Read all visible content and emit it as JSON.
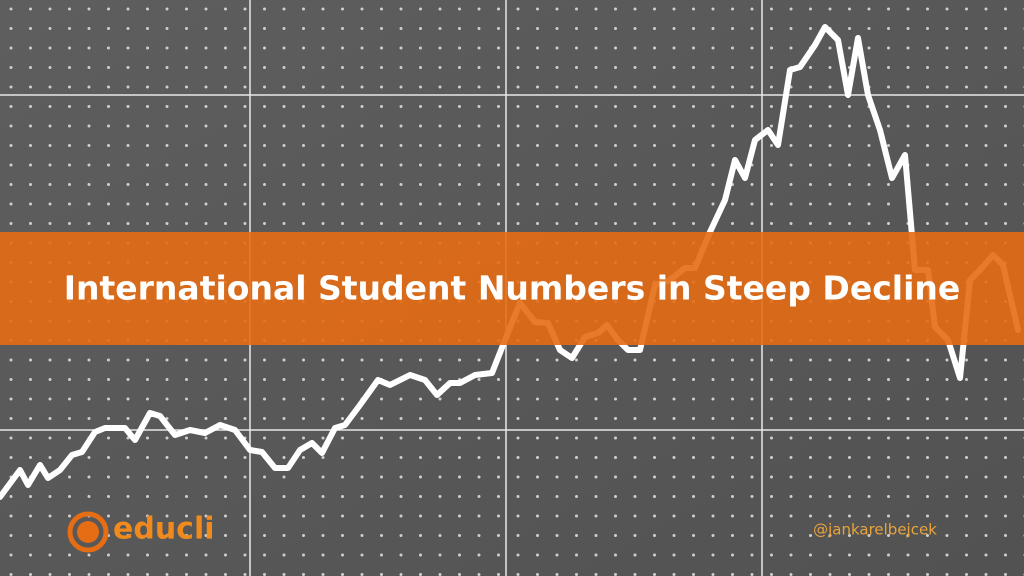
{
  "banner": {
    "title": "International Student Numbers in Steep Decline"
  },
  "logo": {
    "name": "educli"
  },
  "credit": "@jankarelbejcek"
}
